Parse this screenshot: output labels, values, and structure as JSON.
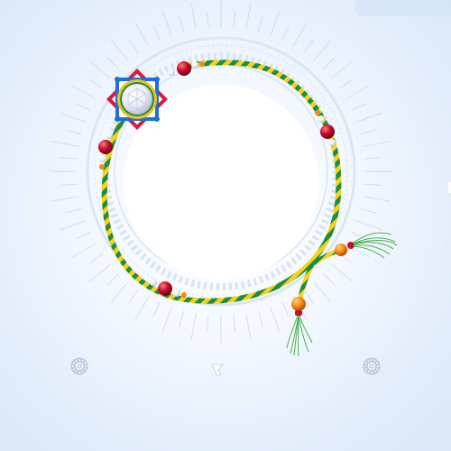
{
  "scene": {
    "kind": "rakhi photo frame",
    "colors": {
      "background": "#e4eefb",
      "center": "#ffffff",
      "thread_green": "#1f8b43",
      "thread_yellow": "#f2d21b",
      "bead_red": "#c8102e",
      "bead_orange": "#f28a14",
      "pearl": "#f2f4f8",
      "jewel_red": "#d91a3c",
      "jewel_blue": "#1e6fd9",
      "mandala": "#c9d9ec"
    },
    "icons": [
      "rakhi-jewel-icon",
      "mandala-icon",
      "mandala-icon",
      "tiny-logo-icon"
    ]
  }
}
